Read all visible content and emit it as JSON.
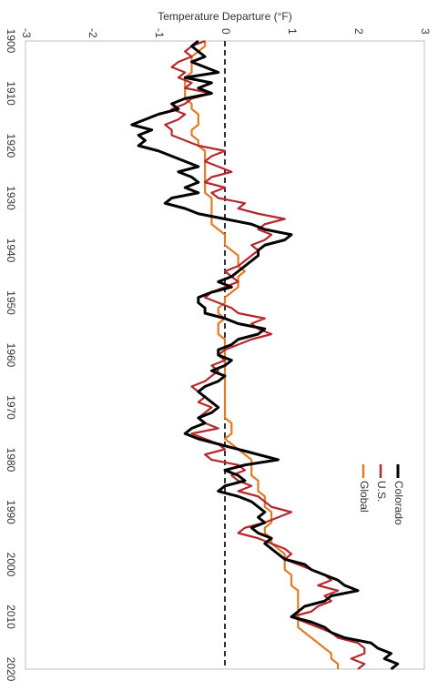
{
  "chart_data": {
    "type": "line",
    "orientation": "rotated-90-clockwise",
    "title": "",
    "xlabel": "",
    "ylabel": "Temperature Departure (°F)",
    "xlim": [
      1900,
      2020
    ],
    "ylim": [
      -3,
      3
    ],
    "x_ticks": [
      "1900",
      "1910",
      "1920",
      "1930",
      "1940",
      "1950",
      "1960",
      "1970",
      "1980",
      "1990",
      "2000",
      "2010",
      "2020"
    ],
    "y_ticks": [
      "-3",
      "-2",
      "-1",
      "0",
      "1",
      "2",
      "3"
    ],
    "reference_line": {
      "value": 0,
      "style": "dashed",
      "color": "#333333"
    },
    "grid": false,
    "legend_position": "top-right",
    "series": [
      {
        "name": "Colorado",
        "color": "#000000",
        "x": [
          1900,
          1901,
          1902,
          1903,
          1904,
          1905,
          1906,
          1907,
          1908,
          1909,
          1910,
          1911,
          1912,
          1913,
          1914,
          1915,
          1916,
          1917,
          1918,
          1919,
          1920,
          1921,
          1922,
          1923,
          1924,
          1925,
          1926,
          1927,
          1928,
          1929,
          1930,
          1931,
          1932,
          1933,
          1934,
          1935,
          1936,
          1937,
          1938,
          1939,
          1940,
          1941,
          1942,
          1943,
          1944,
          1945,
          1946,
          1947,
          1948,
          1949,
          1950,
          1951,
          1952,
          1953,
          1954,
          1955,
          1956,
          1957,
          1958,
          1959,
          1960,
          1961,
          1962,
          1963,
          1964,
          1965,
          1966,
          1967,
          1968,
          1969,
          1970,
          1971,
          1972,
          1973,
          1974,
          1975,
          1976,
          1977,
          1978,
          1979,
          1980,
          1981,
          1982,
          1983,
          1984,
          1985,
          1986,
          1987,
          1988,
          1989,
          1990,
          1991,
          1992,
          1993,
          1994,
          1995,
          1996,
          1997,
          1998,
          1999,
          2000,
          2001,
          2002,
          2003,
          2004,
          2005,
          2006,
          2007,
          2008,
          2009,
          2010,
          2011,
          2012,
          2013,
          2014,
          2015,
          2016,
          2017,
          2018,
          2019,
          2020
        ],
        "values": [
          -0.4,
          -0.5,
          -0.4,
          -0.3,
          -0.5,
          -0.3,
          -0.1,
          -0.6,
          -0.2,
          -0.4,
          -0.2,
          -0.6,
          -0.8,
          -0.7,
          -1.0,
          -1.2,
          -1.4,
          -1.1,
          -1.3,
          -1.2,
          -1.3,
          -1.0,
          -0.8,
          -0.6,
          -0.4,
          -0.7,
          -0.5,
          -0.4,
          -0.6,
          -0.4,
          -0.8,
          -0.9,
          -0.6,
          -0.4,
          0.0,
          0.4,
          0.6,
          1.0,
          0.9,
          0.6,
          0.5,
          0.5,
          0.4,
          0.3,
          0.2,
          0.1,
          -0.1,
          0.1,
          -0.2,
          -0.4,
          -0.4,
          -0.3,
          -0.3,
          0.0,
          0.2,
          0.6,
          0.5,
          0.2,
          0.1,
          -0.1,
          -0.1,
          0.1,
          0.0,
          -0.2,
          0.0,
          -0.1,
          -0.3,
          -0.4,
          -0.3,
          -0.2,
          -0.1,
          -0.2,
          -0.4,
          -0.3,
          -0.5,
          -0.6,
          -0.4,
          -0.1,
          0.2,
          0.5,
          0.8,
          0.3,
          0.0,
          0.2,
          0.3,
          0.0,
          -0.1,
          0.2,
          0.4,
          0.5,
          0.6,
          0.5,
          0.6,
          0.4,
          0.5,
          0.7,
          0.6,
          0.7,
          0.8,
          0.9,
          1.2,
          1.3,
          1.5,
          1.7,
          1.8,
          2.0,
          1.6,
          1.5,
          1.2,
          1.1,
          1.0,
          1.3,
          1.5,
          1.6,
          1.8,
          2.2,
          2.3,
          2.5,
          2.4,
          2.6,
          2.5
        ]
      },
      {
        "name": "U.S.",
        "color": "#b22a2e",
        "x": [
          1900,
          1901,
          1902,
          1903,
          1904,
          1905,
          1906,
          1907,
          1908,
          1909,
          1910,
          1911,
          1912,
          1913,
          1914,
          1915,
          1916,
          1917,
          1918,
          1919,
          1920,
          1921,
          1922,
          1923,
          1924,
          1925,
          1926,
          1927,
          1928,
          1929,
          1930,
          1931,
          1932,
          1933,
          1934,
          1935,
          1936,
          1937,
          1938,
          1939,
          1940,
          1941,
          1942,
          1943,
          1944,
          1945,
          1946,
          1947,
          1948,
          1949,
          1950,
          1951,
          1952,
          1953,
          1954,
          1955,
          1956,
          1957,
          1958,
          1959,
          1960,
          1961,
          1962,
          1963,
          1964,
          1965,
          1966,
          1967,
          1968,
          1969,
          1970,
          1971,
          1972,
          1973,
          1974,
          1975,
          1976,
          1977,
          1978,
          1979,
          1980,
          1981,
          1982,
          1983,
          1984,
          1985,
          1986,
          1987,
          1988,
          1989,
          1990,
          1991,
          1992,
          1993,
          1994,
          1995,
          1996,
          1997,
          1998,
          1999,
          2000,
          2001,
          2002,
          2003,
          2004,
          2005,
          2006,
          2007,
          2008,
          2009,
          2010,
          2011,
          2012,
          2013,
          2014,
          2015,
          2016,
          2017,
          2018,
          2019,
          2020
        ],
        "values": [
          -0.3,
          -0.5,
          -0.6,
          -0.5,
          -0.7,
          -0.8,
          -0.6,
          -0.7,
          -0.5,
          -0.6,
          -0.2,
          -0.5,
          -0.6,
          -0.8,
          -0.6,
          -0.7,
          -0.9,
          -0.8,
          -0.8,
          -0.6,
          -0.4,
          0.0,
          -0.2,
          -0.3,
          -0.1,
          0.1,
          -0.2,
          -0.3,
          0.0,
          -0.2,
          -0.1,
          0.3,
          0.2,
          0.5,
          0.9,
          0.6,
          0.5,
          0.7,
          0.6,
          0.4,
          0.5,
          0.4,
          0.3,
          0.2,
          0.0,
          0.1,
          0.2,
          0.0,
          -0.2,
          -0.3,
          -0.1,
          0.1,
          0.2,
          0.6,
          0.4,
          0.5,
          0.7,
          0.4,
          0.2,
          0.0,
          -0.1,
          0.0,
          -0.2,
          -0.1,
          -0.2,
          -0.3,
          -0.5,
          -0.4,
          -0.3,
          -0.4,
          -0.2,
          -0.3,
          -0.4,
          -0.3,
          -0.1,
          -0.5,
          -0.3,
          -0.1,
          0.0,
          -0.3,
          -0.2,
          0.2,
          0.3,
          0.1,
          0.2,
          0.4,
          0.2,
          0.5,
          0.6,
          0.7,
          1.0,
          0.8,
          0.6,
          0.3,
          0.2,
          0.5,
          0.7,
          0.9,
          1.0,
          0.9,
          1.1,
          1.3,
          1.5,
          1.6,
          1.4,
          1.7,
          1.5,
          1.6,
          1.4,
          1.3,
          1.0,
          1.2,
          1.4,
          1.6,
          1.7,
          2.0,
          2.1,
          2.1,
          1.9,
          2.1,
          2.0
        ]
      },
      {
        "name": "Global",
        "color": "#e07b26",
        "x": [
          1900,
          1901,
          1902,
          1903,
          1904,
          1905,
          1906,
          1907,
          1908,
          1909,
          1910,
          1911,
          1912,
          1913,
          1914,
          1915,
          1916,
          1917,
          1918,
          1919,
          1920,
          1921,
          1922,
          1923,
          1924,
          1925,
          1926,
          1927,
          1928,
          1929,
          1930,
          1931,
          1932,
          1933,
          1934,
          1935,
          1936,
          1937,
          1938,
          1939,
          1940,
          1941,
          1942,
          1943,
          1944,
          1945,
          1946,
          1947,
          1948,
          1949,
          1950,
          1951,
          1952,
          1953,
          1954,
          1955,
          1956,
          1957,
          1958,
          1959,
          1960,
          1961,
          1962,
          1963,
          1964,
          1965,
          1966,
          1967,
          1968,
          1969,
          1970,
          1971,
          1972,
          1973,
          1974,
          1975,
          1976,
          1977,
          1978,
          1979,
          1980,
          1981,
          1982,
          1983,
          1984,
          1985,
          1986,
          1987,
          1988,
          1989,
          1990,
          1991,
          1992,
          1993,
          1994,
          1995,
          1996,
          1997,
          1998,
          1999,
          2000,
          2001,
          2002,
          2003,
          2004,
          2005,
          2006,
          2007,
          2008,
          2009,
          2010,
          2011,
          2012,
          2013,
          2014,
          2015,
          2016,
          2017,
          2018,
          2019,
          2020
        ],
        "values": [
          -0.3,
          -0.3,
          -0.4,
          -0.5,
          -0.5,
          -0.5,
          -0.5,
          -0.6,
          -0.6,
          -0.6,
          -0.6,
          -0.6,
          -0.5,
          -0.5,
          -0.4,
          -0.4,
          -0.4,
          -0.5,
          -0.5,
          -0.4,
          -0.4,
          -0.3,
          -0.3,
          -0.3,
          -0.3,
          -0.3,
          -0.3,
          -0.3,
          -0.3,
          -0.3,
          -0.2,
          -0.2,
          -0.2,
          -0.2,
          -0.2,
          -0.2,
          -0.1,
          0.0,
          0.0,
          0.0,
          0.1,
          0.2,
          0.2,
          0.2,
          0.3,
          0.2,
          0.2,
          0.2,
          0.1,
          0.0,
          0.0,
          -0.1,
          -0.1,
          0.0,
          -0.1,
          -0.1,
          -0.1,
          0.0,
          0.0,
          0.0,
          0.0,
          0.0,
          0.0,
          0.0,
          0.0,
          0.0,
          0.0,
          0.0,
          0.0,
          0.0,
          0.0,
          0.0,
          0.0,
          0.1,
          0.1,
          0.1,
          0.0,
          0.1,
          0.2,
          0.3,
          0.4,
          0.4,
          0.4,
          0.4,
          0.5,
          0.5,
          0.5,
          0.6,
          0.6,
          0.6,
          0.7,
          0.7,
          0.7,
          0.6,
          0.6,
          0.7,
          0.7,
          0.8,
          0.9,
          0.9,
          0.9,
          0.9,
          1.0,
          1.0,
          1.0,
          1.1,
          1.1,
          1.1,
          1.1,
          1.1,
          1.1,
          1.1,
          1.1,
          1.2,
          1.3,
          1.4,
          1.5,
          1.6,
          1.6,
          1.7,
          1.7
        ]
      }
    ]
  }
}
